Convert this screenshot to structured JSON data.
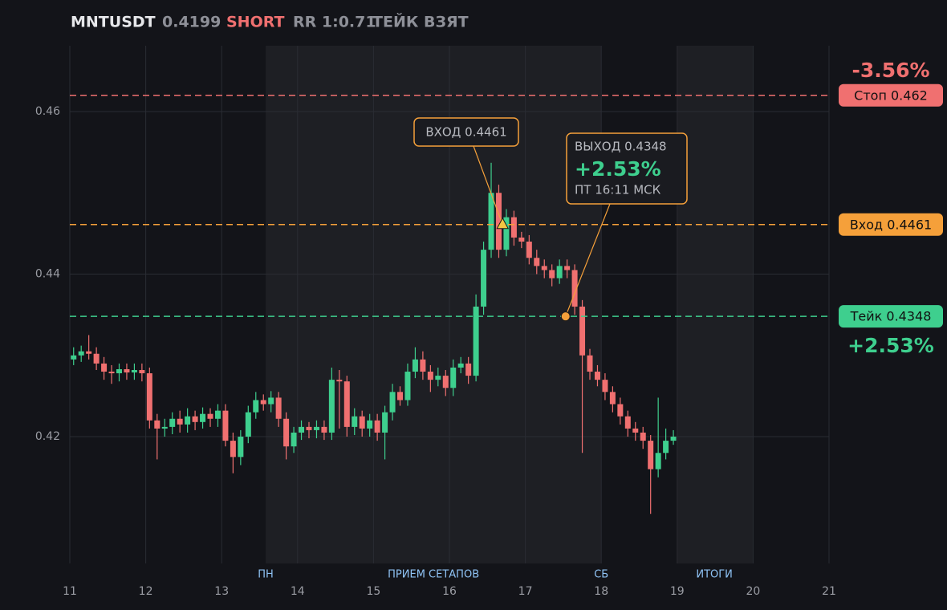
{
  "chart_data": {
    "type": "candlestick",
    "title": "MNTUSDT",
    "price": 0.4199,
    "side": "SHORT",
    "rr": "RR 1:0.71",
    "status": "ТЕЙК ВЗЯТ",
    "xlim": [
      11,
      21
    ],
    "xticks": [
      11,
      12,
      13,
      14,
      15,
      16,
      17,
      18,
      19,
      20,
      21
    ],
    "ylim": [
      0.4044,
      0.4681
    ],
    "yticks": [
      0.42,
      0.44,
      0.46
    ],
    "grid": true,
    "up_color": "#3ecf8e",
    "down_color": "#f07070",
    "shaded": [
      [
        13.58,
        18.0
      ],
      [
        19.0,
        20.0
      ]
    ],
    "sessions": [
      {
        "label": "ПН",
        "x": 13.58
      },
      {
        "label": "ПРИЕМ СЕТАПОВ",
        "x": 15.79
      },
      {
        "label": "СБ",
        "x": 18.0
      },
      {
        "label": "ИТОГИ",
        "x": 19.49
      }
    ],
    "levels": [
      {
        "label": "Стоп 0.462",
        "value": 0.462,
        "color": "#f07070"
      },
      {
        "label": "Вход 0.4461",
        "value": 0.4461,
        "color": "#f5a03a"
      },
      {
        "label": "Тейк 0.4348",
        "value": 0.4348,
        "color": "#3ecf8e"
      }
    ],
    "risk_label": "-3.56%",
    "reward_label": "+2.53%",
    "entry": {
      "label": "ВХОД 0.4461",
      "x": 16.7,
      "y": 0.4461
    },
    "exit": {
      "label": "ВЫХОД 0.4348",
      "pnl": "+2.53%",
      "time": "ПТ 16:11 МСК",
      "x": 17.53,
      "y": 0.4348
    },
    "x": [
      11.05,
      11.15,
      11.25,
      11.35,
      11.45,
      11.55,
      11.65,
      11.75,
      11.85,
      11.95,
      12.05,
      12.15,
      12.25,
      12.35,
      12.45,
      12.55,
      12.65,
      12.75,
      12.85,
      12.95,
      13.05,
      13.15,
      13.25,
      13.35,
      13.45,
      13.55,
      13.65,
      13.75,
      13.85,
      13.95,
      14.05,
      14.15,
      14.25,
      14.35,
      14.45,
      14.55,
      14.65,
      14.75,
      14.85,
      14.95,
      15.05,
      15.15,
      15.25,
      15.35,
      15.45,
      15.55,
      15.65,
      15.75,
      15.85,
      15.95,
      16.05,
      16.15,
      16.25,
      16.35,
      16.45,
      16.55,
      16.65,
      16.75,
      16.85,
      16.95,
      17.05,
      17.15,
      17.25,
      17.35,
      17.45,
      17.55,
      17.65,
      17.75,
      17.85,
      17.95,
      18.05,
      18.15,
      18.25,
      18.35,
      18.45,
      18.55,
      18.65,
      18.75,
      18.85,
      18.95
    ],
    "open": [
      0.4295,
      0.43,
      0.4305,
      0.4302,
      0.429,
      0.428,
      0.4278,
      0.4283,
      0.4279,
      0.4282,
      0.4278,
      0.422,
      0.421,
      0.4212,
      0.4222,
      0.4215,
      0.4225,
      0.4218,
      0.4228,
      0.4222,
      0.4232,
      0.4195,
      0.4175,
      0.42,
      0.423,
      0.4245,
      0.424,
      0.4248,
      0.4222,
      0.4188,
      0.4205,
      0.4212,
      0.4208,
      0.4212,
      0.4205,
      0.427,
      0.4268,
      0.4212,
      0.4225,
      0.421,
      0.422,
      0.4205,
      0.423,
      0.4255,
      0.4245,
      0.428,
      0.4295,
      0.428,
      0.427,
      0.4275,
      0.426,
      0.4285,
      0.429,
      0.4275,
      0.436,
      0.443,
      0.45,
      0.443,
      0.447,
      0.4445,
      0.444,
      0.442,
      0.441,
      0.4405,
      0.4395,
      0.441,
      0.4405,
      0.436,
      0.43,
      0.428,
      0.427,
      0.4255,
      0.424,
      0.4225,
      0.421,
      0.4205,
      0.4195,
      0.416,
      0.418,
      0.4195
    ],
    "high": [
      0.431,
      0.4312,
      0.4325,
      0.431,
      0.4298,
      0.4288,
      0.429,
      0.429,
      0.429,
      0.429,
      0.4285,
      0.4228,
      0.4222,
      0.423,
      0.4232,
      0.4235,
      0.4232,
      0.4236,
      0.4235,
      0.424,
      0.424,
      0.4205,
      0.4208,
      0.4238,
      0.4255,
      0.4252,
      0.4256,
      0.4255,
      0.423,
      0.4212,
      0.422,
      0.4218,
      0.422,
      0.422,
      0.4285,
      0.4282,
      0.4275,
      0.4235,
      0.4232,
      0.4228,
      0.4228,
      0.4238,
      0.4265,
      0.4262,
      0.429,
      0.431,
      0.4305,
      0.4288,
      0.4285,
      0.4282,
      0.4295,
      0.4298,
      0.4298,
      0.4375,
      0.444,
      0.4537,
      0.451,
      0.448,
      0.4478,
      0.4452,
      0.4448,
      0.443,
      0.4418,
      0.4412,
      0.4418,
      0.4418,
      0.4412,
      0.4368,
      0.4308,
      0.4288,
      0.4278,
      0.4262,
      0.4248,
      0.4232,
      0.4218,
      0.4212,
      0.4202,
      0.4248,
      0.421,
      0.4208
    ],
    "low": [
      0.4288,
      0.4292,
      0.4295,
      0.4282,
      0.427,
      0.4265,
      0.4268,
      0.427,
      0.427,
      0.4268,
      0.421,
      0.4172,
      0.42,
      0.4203,
      0.4205,
      0.4205,
      0.4208,
      0.421,
      0.4212,
      0.4212,
      0.4188,
      0.4155,
      0.4165,
      0.4192,
      0.4222,
      0.4232,
      0.423,
      0.4212,
      0.4172,
      0.418,
      0.4196,
      0.4198,
      0.4198,
      0.4196,
      0.4196,
      0.421,
      0.42,
      0.4202,
      0.42,
      0.42,
      0.4195,
      0.4172,
      0.422,
      0.4238,
      0.4238,
      0.4272,
      0.427,
      0.4255,
      0.4262,
      0.425,
      0.425,
      0.4278,
      0.4265,
      0.4268,
      0.435,
      0.442,
      0.442,
      0.4422,
      0.4435,
      0.4432,
      0.4412,
      0.44,
      0.4395,
      0.4385,
      0.4388,
      0.4395,
      0.435,
      0.418,
      0.427,
      0.4262,
      0.4245,
      0.423,
      0.4215,
      0.42,
      0.4195,
      0.4185,
      0.4105,
      0.415,
      0.4172,
      0.419
    ],
    "close": [
      0.43,
      0.4305,
      0.4302,
      0.429,
      0.428,
      0.4278,
      0.4283,
      0.4279,
      0.4282,
      0.4278,
      0.422,
      0.421,
      0.4212,
      0.4222,
      0.4215,
      0.4225,
      0.4218,
      0.4228,
      0.4222,
      0.4232,
      0.4195,
      0.4175,
      0.42,
      0.423,
      0.4245,
      0.424,
      0.4248,
      0.4222,
      0.4188,
      0.4205,
      0.4212,
      0.4208,
      0.4212,
      0.4205,
      0.427,
      0.4268,
      0.4212,
      0.4225,
      0.421,
      0.422,
      0.4205,
      0.423,
      0.4255,
      0.4245,
      0.428,
      0.4295,
      0.428,
      0.427,
      0.4275,
      0.426,
      0.4285,
      0.429,
      0.4275,
      0.436,
      0.443,
      0.45,
      0.443,
      0.447,
      0.4445,
      0.444,
      0.442,
      0.441,
      0.4405,
      0.4395,
      0.441,
      0.4405,
      0.436,
      0.43,
      0.428,
      0.427,
      0.4255,
      0.424,
      0.4225,
      0.421,
      0.4205,
      0.4195,
      0.416,
      0.418,
      0.4195,
      0.42
    ]
  }
}
